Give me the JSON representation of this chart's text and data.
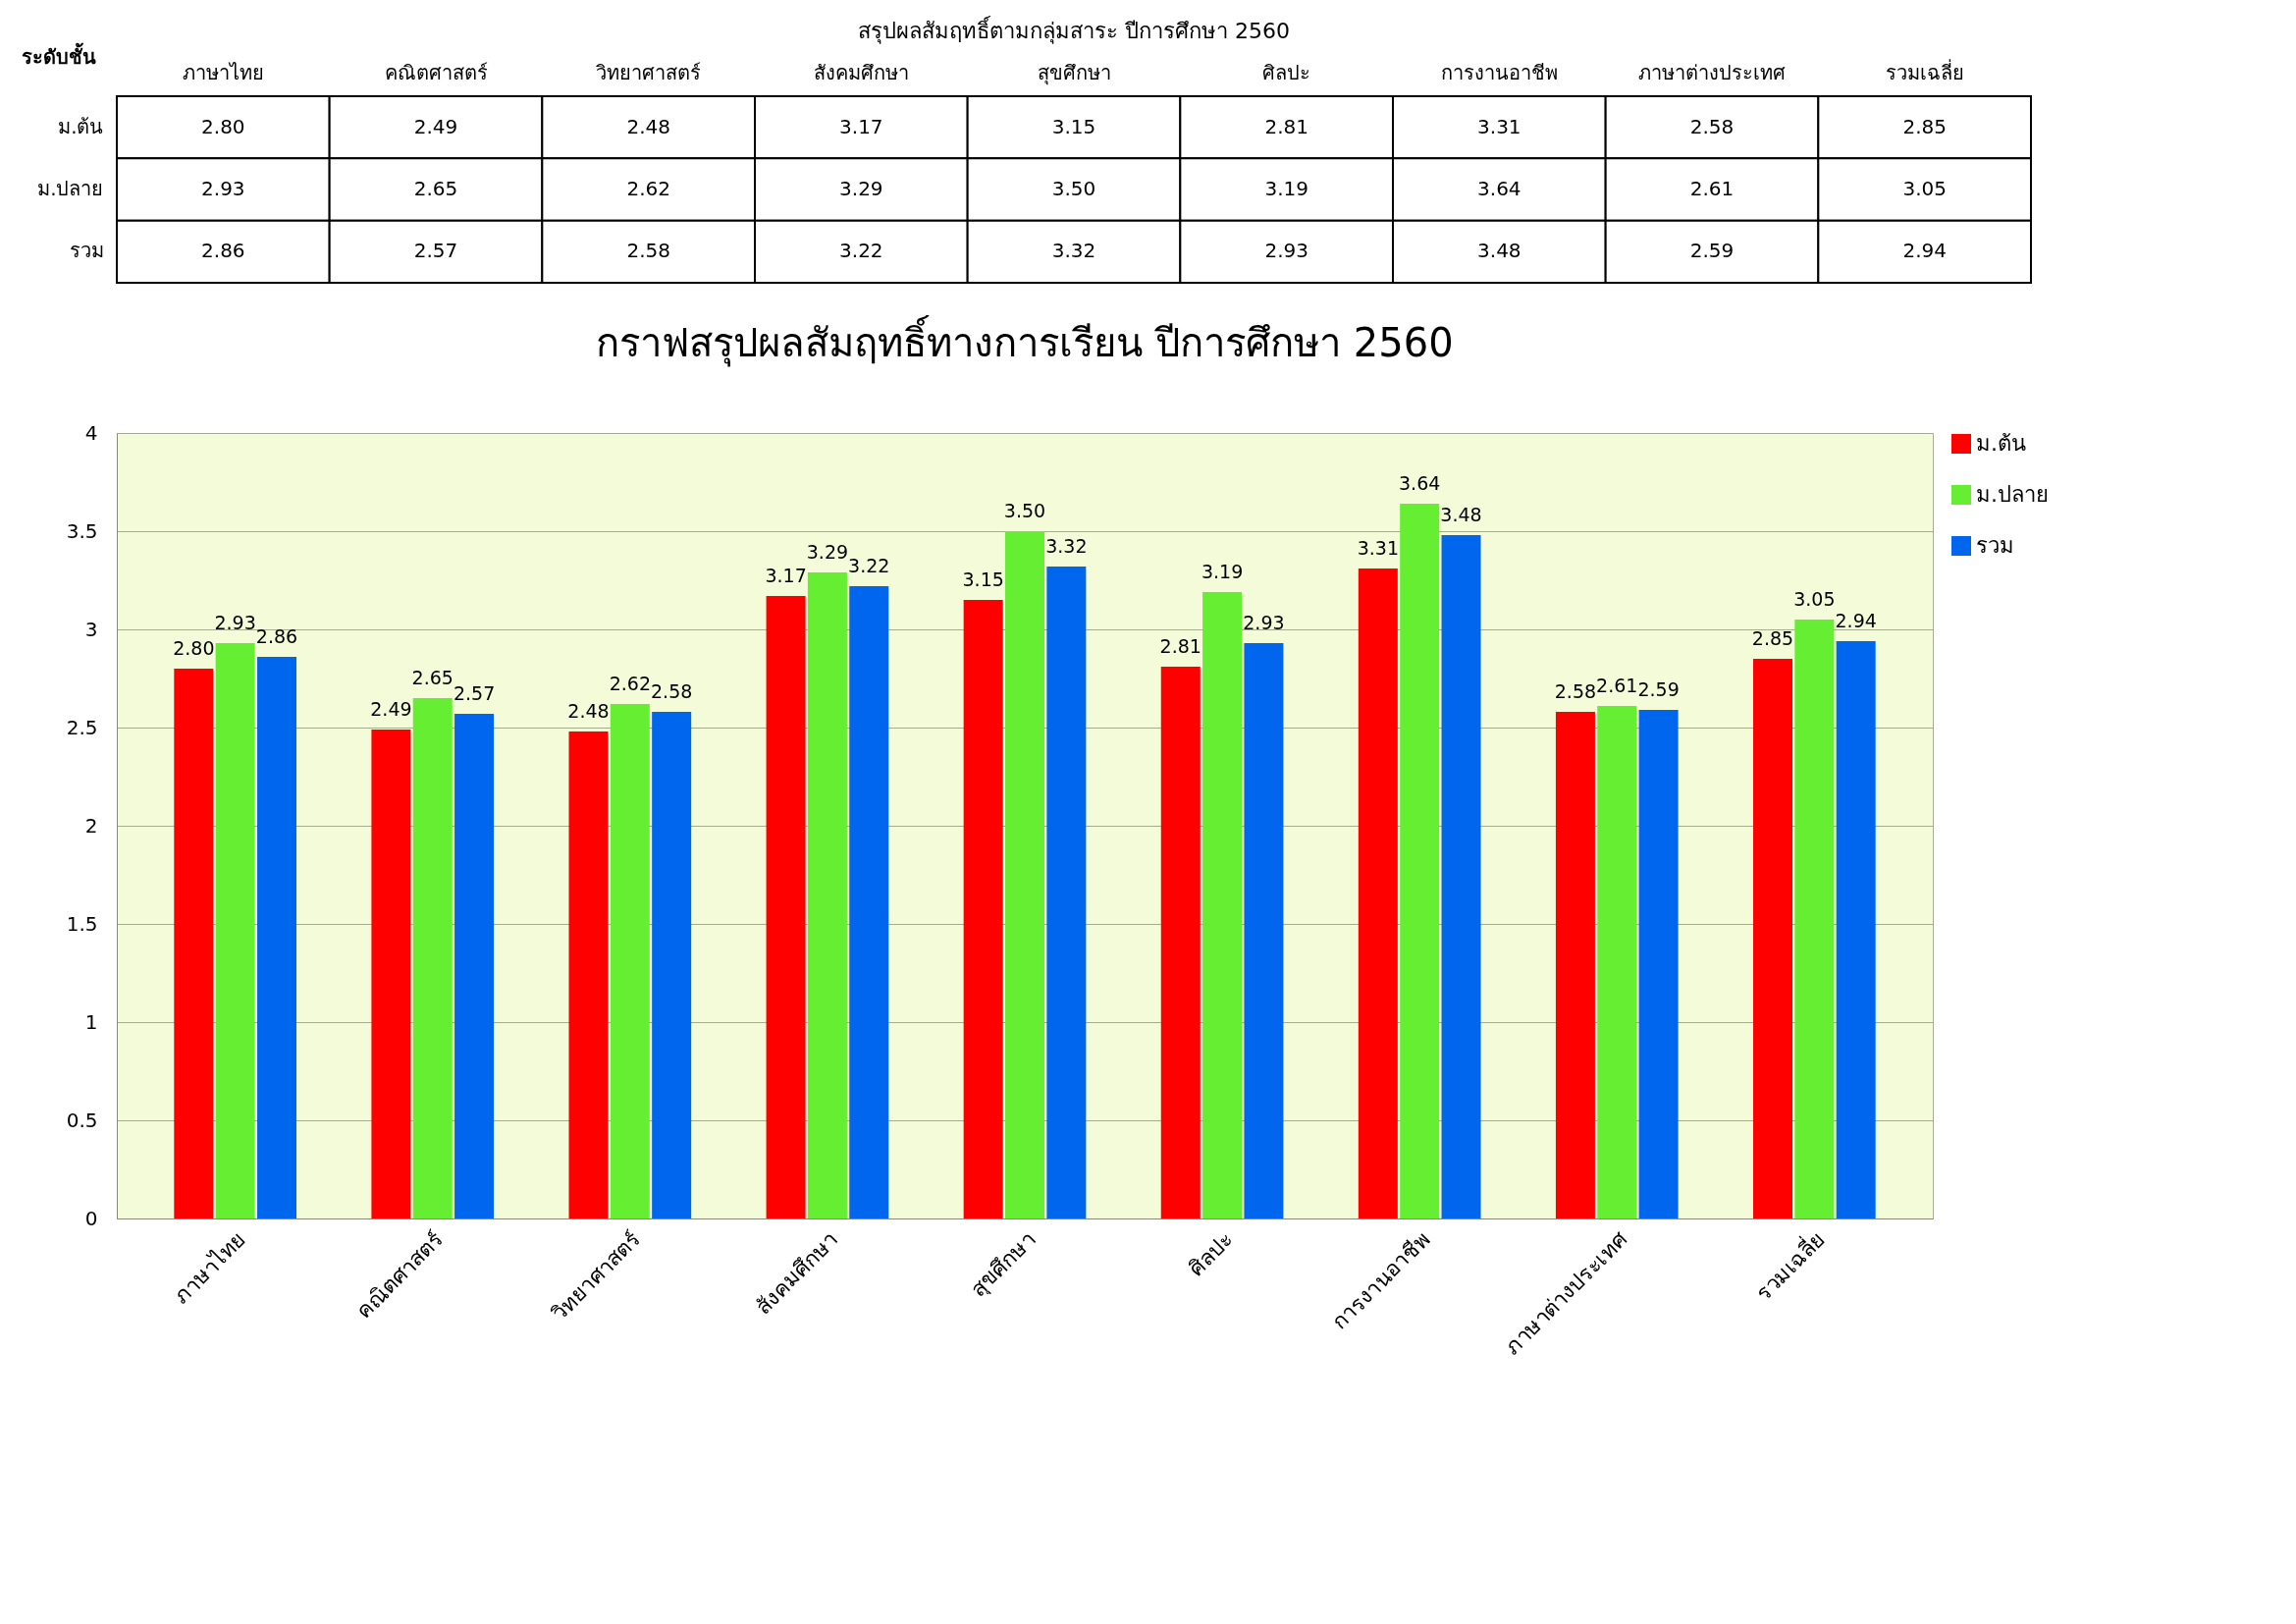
{
  "chart_data": {
    "type": "bar",
    "title": "กราฟสรุปผลสัมฤทธิ์ทางการเรียน ปีการศึกษา 2560",
    "annotations": [
      "สรุปผลสัมฤทธิ์ตามกลุ่มสาระ ปีการศึกษา 2560",
      "ระดับชั้น"
    ],
    "categories": [
      "ภาษาไทย",
      "คณิตศาสตร์",
      "วิทยาศาสตร์",
      "สังคมศึกษา",
      "สุขศึกษา",
      "ศิลปะ",
      "การงานอาชีพ",
      "ภาษาต่างประเทศ",
      "รวมเฉลี่ย"
    ],
    "series": [
      {
        "name": "ม.ต้น",
        "color": "#ff0000",
        "values": [
          2.8,
          2.49,
          2.48,
          3.17,
          3.15,
          2.81,
          3.31,
          2.58,
          2.85
        ],
        "value_labels": [
          "2.80",
          "2.49",
          "2.48",
          "3.17",
          "3.15",
          "2.81",
          "3.31",
          "2.58",
          "2.85"
        ]
      },
      {
        "name": "ม.ปลาย",
        "color": "#66ee33",
        "values": [
          2.93,
          2.65,
          2.62,
          3.29,
          3.5,
          3.19,
          3.64,
          2.61,
          3.05
        ],
        "value_labels": [
          "2.93",
          "2.65",
          "2.62",
          "3.29",
          "3.50",
          "3.19",
          "3.64",
          "2.61",
          "3.05"
        ]
      },
      {
        "name": "รวม",
        "color": "#0066ee",
        "values": [
          2.86,
          2.57,
          2.58,
          3.22,
          3.32,
          2.93,
          3.48,
          2.59,
          2.94
        ],
        "value_labels": [
          "2.86",
          "2.57",
          "2.58",
          "3.22",
          "3.32",
          "2.93",
          "3.48",
          "2.59",
          "2.94"
        ]
      }
    ],
    "ylim": [
      0,
      4
    ],
    "yticks": [
      0,
      0.5,
      1,
      1.5,
      2,
      2.5,
      3,
      3.5,
      4
    ],
    "grid": "y",
    "legend": "right"
  }
}
